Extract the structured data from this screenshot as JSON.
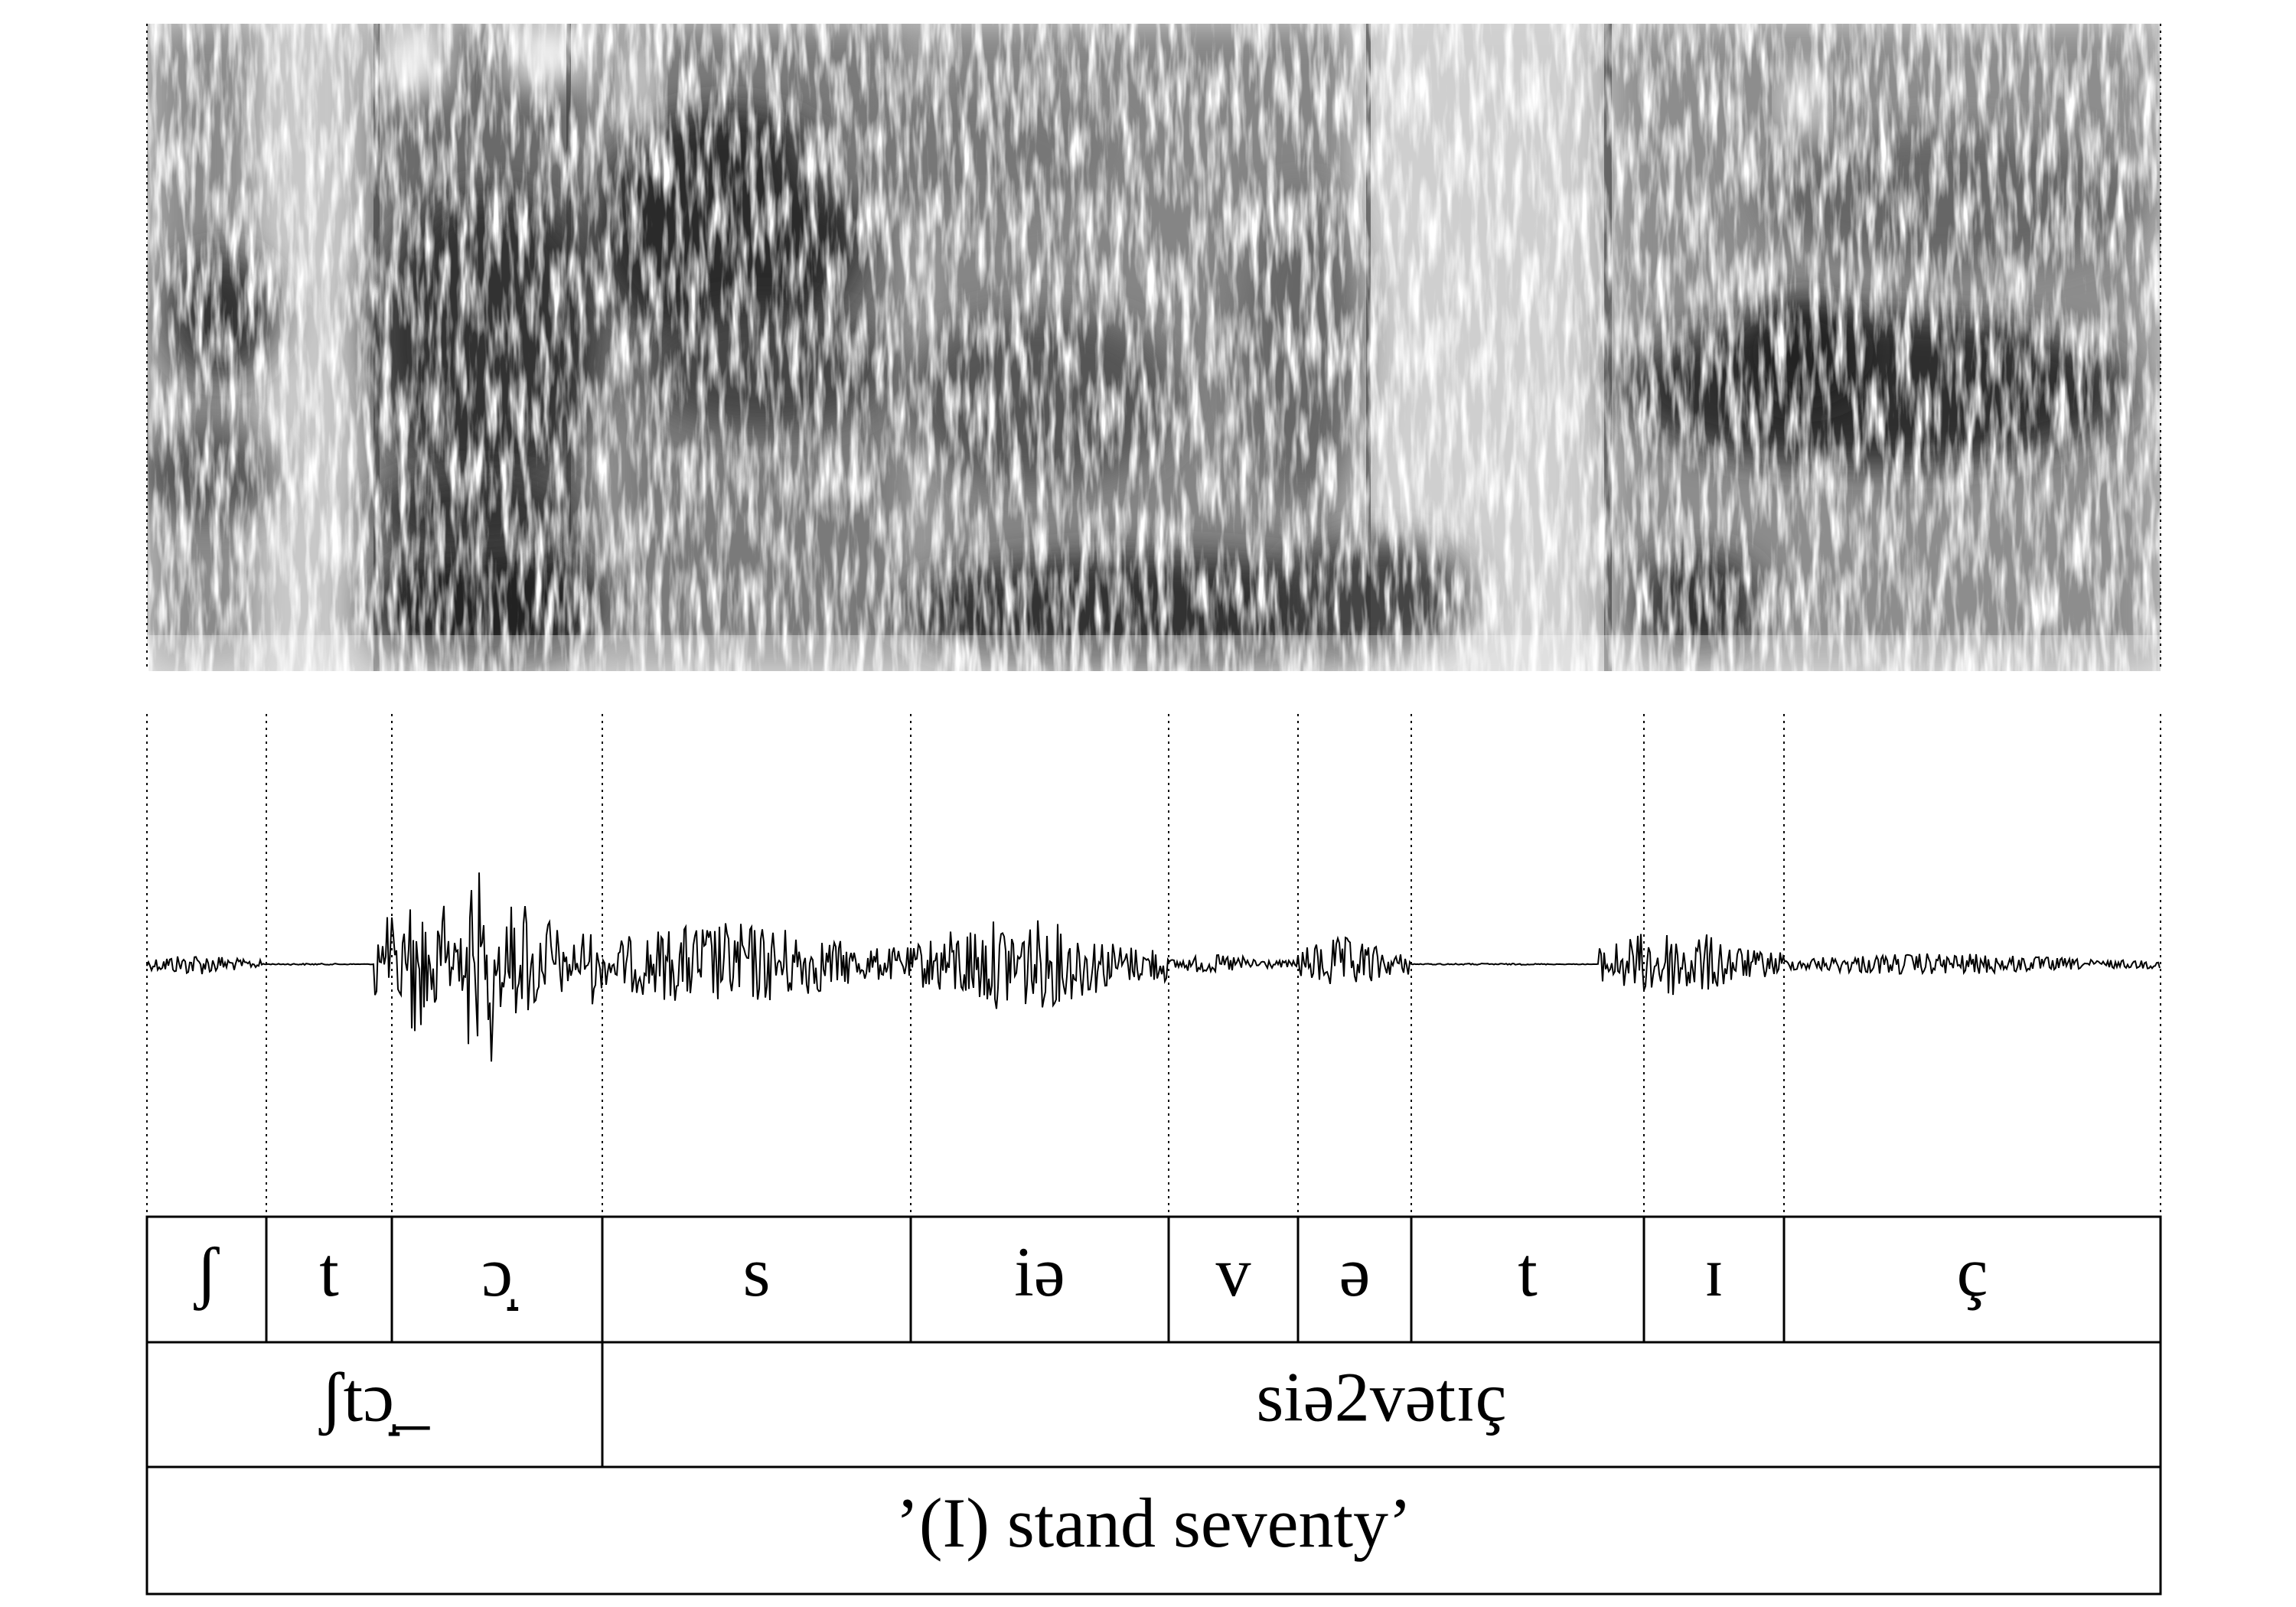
{
  "tiers": {
    "segments": [
      "ʃ",
      "t",
      "ɔ̝",
      "s",
      "iə",
      "v",
      "ə",
      "t",
      "ɪ",
      "ç"
    ],
    "words": [
      "ʃtɔ̝_",
      "siə2vətɪç"
    ],
    "gloss": "’(I) stand seventy’"
  }
}
